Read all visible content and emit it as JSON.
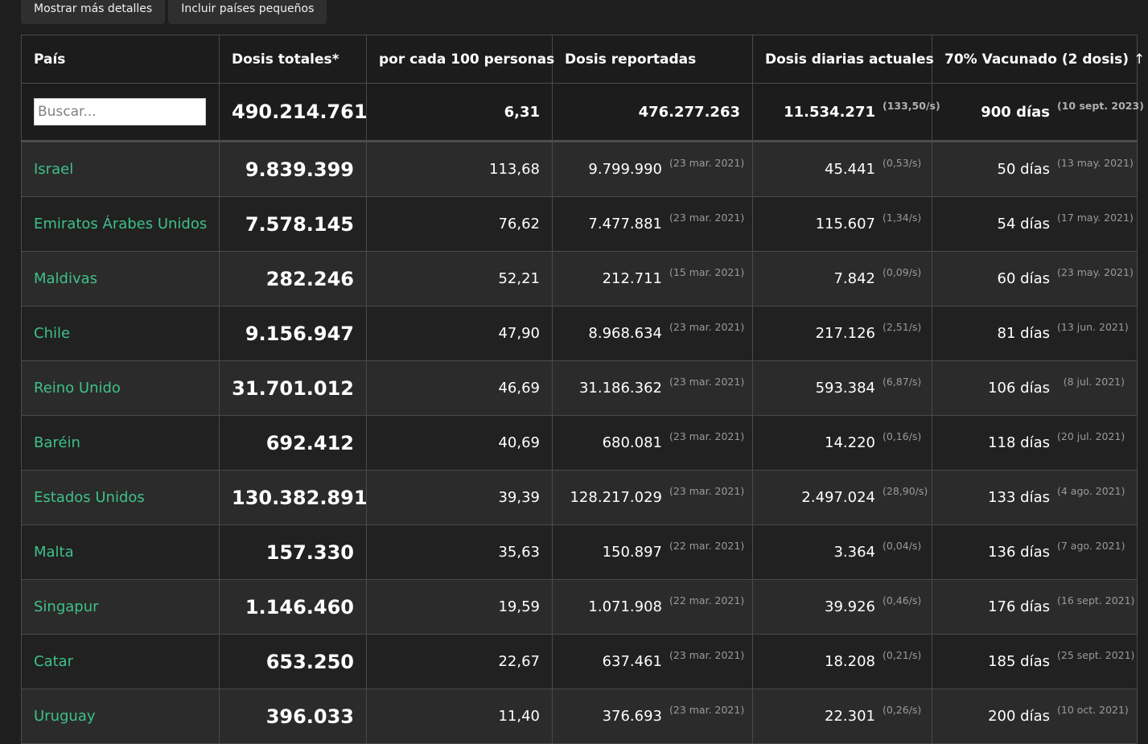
{
  "toolbar": {
    "show_more_label": "Mostrar más detalles",
    "include_small_label": "Incluir países pequeños"
  },
  "columns": {
    "country": "País",
    "total": "Dosis totales*",
    "per100": "por cada 100 personas",
    "reported": "Dosis reportadas",
    "daily": "Dosis diarias actuales",
    "vaccinated": "70% Vacunado (2 dosis)",
    "sort_arrow": "↑"
  },
  "search": {
    "placeholder": "Buscar..."
  },
  "summary": {
    "total": "490.214.761",
    "per100": "6,31",
    "reported": "476.277.263",
    "daily": "11.534.271",
    "rate": "(133,50/s)",
    "days": "900 días",
    "target_date": "(10 sept. 2023)"
  },
  "rows": [
    {
      "country": "Israel",
      "total": "9.839.399",
      "per100": "113,68",
      "reported": "9.799.990",
      "reported_date": "(23 mar. 2021)",
      "daily": "45.441",
      "rate": "(0,53/s)",
      "days": "50 días",
      "target_date": "(13 may. 2021)"
    },
    {
      "country": "Emiratos Árabes Unidos",
      "total": "7.578.145",
      "per100": "76,62",
      "reported": "7.477.881",
      "reported_date": "(23 mar. 2021)",
      "daily": "115.607",
      "rate": "(1,34/s)",
      "days": "54 días",
      "target_date": "(17 may. 2021)"
    },
    {
      "country": "Maldivas",
      "total": "282.246",
      "per100": "52,21",
      "reported": "212.711",
      "reported_date": "(15 mar. 2021)",
      "daily": "7.842",
      "rate": "(0,09/s)",
      "days": "60 días",
      "target_date": "(23 may. 2021)"
    },
    {
      "country": "Chile",
      "total": "9.156.947",
      "per100": "47,90",
      "reported": "8.968.634",
      "reported_date": "(23 mar. 2021)",
      "daily": "217.126",
      "rate": "(2,51/s)",
      "days": "81 días",
      "target_date": "(13 jun. 2021)"
    },
    {
      "country": "Reino Unido",
      "total": "31.701.012",
      "per100": "46,69",
      "reported": "31.186.362",
      "reported_date": "(23 mar. 2021)",
      "daily": "593.384",
      "rate": "(6,87/s)",
      "days": "106 días",
      "target_date": "(8 jul. 2021)"
    },
    {
      "country": "Baréin",
      "total": "692.412",
      "per100": "40,69",
      "reported": "680.081",
      "reported_date": "(23 mar. 2021)",
      "daily": "14.220",
      "rate": "(0,16/s)",
      "days": "118 días",
      "target_date": "(20 jul. 2021)"
    },
    {
      "country": "Estados Unidos",
      "total": "130.382.891",
      "per100": "39,39",
      "reported": "128.217.029",
      "reported_date": "(23 mar. 2021)",
      "daily": "2.497.024",
      "rate": "(28,90/s)",
      "days": "133 días",
      "target_date": "(4 ago. 2021)"
    },
    {
      "country": "Malta",
      "total": "157.330",
      "per100": "35,63",
      "reported": "150.897",
      "reported_date": "(22 mar. 2021)",
      "daily": "3.364",
      "rate": "(0,04/s)",
      "days": "136 días",
      "target_date": "(7 ago. 2021)"
    },
    {
      "country": "Singapur",
      "total": "1.146.460",
      "per100": "19,59",
      "reported": "1.071.908",
      "reported_date": "(22 mar. 2021)",
      "daily": "39.926",
      "rate": "(0,46/s)",
      "days": "176 días",
      "target_date": "(16 sept. 2021)"
    },
    {
      "country": "Catar",
      "total": "653.250",
      "per100": "22,67",
      "reported": "637.461",
      "reported_date": "(23 mar. 2021)",
      "daily": "18.208",
      "rate": "(0,21/s)",
      "days": "185 días",
      "target_date": "(25 sept. 2021)"
    },
    {
      "country": "Uruguay",
      "total": "396.033",
      "per100": "11,40",
      "reported": "376.693",
      "reported_date": "(23 mar. 2021)",
      "daily": "22.301",
      "rate": "(0,26/s)",
      "days": "200 días",
      "target_date": "(10 oct. 2021)"
    }
  ]
}
